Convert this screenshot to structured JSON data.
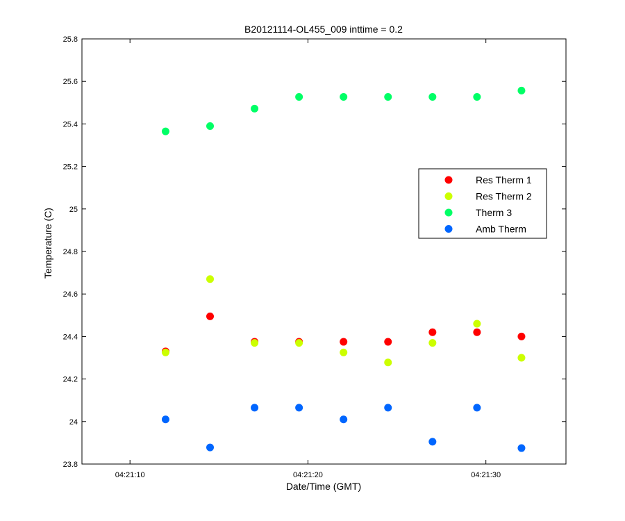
{
  "chart_data": {
    "type": "scatter",
    "title": "B20121114-OL455_009 inttime = 0.2",
    "xlabel": "Date/Time (GMT)",
    "ylabel": "Temperature (C)",
    "xlim": [
      "04:21:07.3",
      "04:21:34.5"
    ],
    "ylim": [
      23.8,
      25.8
    ],
    "xticks": [
      "04:21:10",
      "04:21:20",
      "04:21:30"
    ],
    "yticks": [
      "23.8",
      "24",
      "24.2",
      "24.4",
      "24.6",
      "24.8",
      "25",
      "25.2",
      "25.4",
      "25.6",
      "25.8"
    ],
    "grid": false,
    "legend_position": "right",
    "x": [
      "04:21:12.0",
      "04:21:14.5",
      "04:21:17.0",
      "04:21:19.5",
      "04:21:22.0",
      "04:21:24.5",
      "04:21:27.0",
      "04:21:29.5",
      "04:21:32.0"
    ],
    "series": [
      {
        "name": "Res Therm 1",
        "color": "#ff0000",
        "values": [
          24.33,
          24.495,
          24.375,
          24.375,
          24.375,
          24.375,
          24.42,
          24.42,
          24.4
        ]
      },
      {
        "name": "Res Therm 2",
        "color": "#ccff00",
        "values": [
          24.325,
          24.67,
          24.37,
          24.37,
          24.325,
          24.278,
          24.37,
          24.46,
          24.3
        ]
      },
      {
        "name": "Therm 3",
        "color": "#00ff66",
        "values": [
          25.365,
          25.39,
          25.472,
          25.527,
          25.527,
          25.527,
          25.527,
          25.527,
          25.557
        ]
      },
      {
        "name": "Amb Therm",
        "color": "#0066ff",
        "values": [
          24.01,
          23.878,
          24.065,
          24.065,
          24.01,
          24.065,
          23.905,
          24.065,
          23.875
        ]
      }
    ]
  }
}
